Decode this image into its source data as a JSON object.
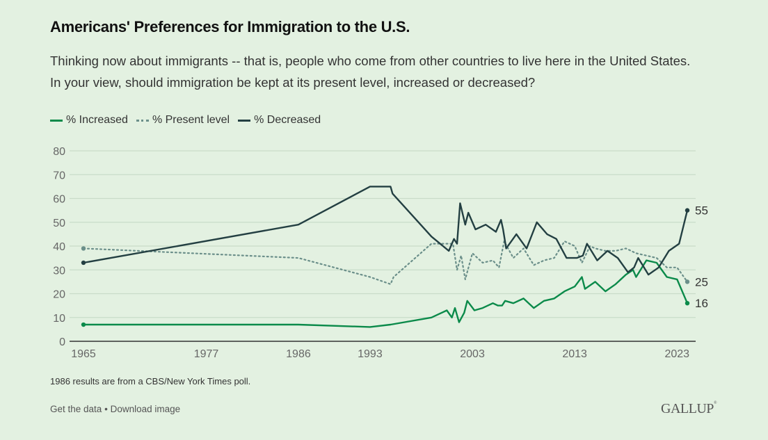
{
  "header": {
    "title": "Americans' Preferences for Immigration to the U.S.",
    "subtitle": "Thinking now about immigrants -- that is, people who come from other countries to live here in the United States. In your view, should immigration be kept at its present level, increased or decreased?"
  },
  "legend": {
    "increased": "% Increased",
    "present": "% Present level",
    "decreased": "% Decreased"
  },
  "colors": {
    "increased": "#0b8a4a",
    "present": "#6b8f8a",
    "decreased": "#233f42",
    "grid": "#c9dcc8",
    "axis": "#333333",
    "background": "#e3f1e1"
  },
  "footer": {
    "note": "1986 results are from a CBS/New York Times poll.",
    "get_data": "Get the data",
    "separator": "•",
    "download": "Download image",
    "brand": "GALLUP"
  },
  "chart_data": {
    "type": "line",
    "title": "Americans' Preferences for Immigration to the U.S.",
    "xlabel": "",
    "ylabel": "",
    "xlim": [
      1965,
      2024
    ],
    "ylim": [
      0,
      80
    ],
    "yticks": [
      0,
      10,
      20,
      30,
      40,
      50,
      60,
      70,
      80
    ],
    "xticks": [
      1965,
      1977,
      1986,
      1993,
      2003,
      2013,
      2023
    ],
    "grid": true,
    "legend_position": "top-left",
    "end_labels": {
      "decreased": "55",
      "present": "25",
      "increased": "16"
    },
    "series": [
      {
        "name": "% Increased",
        "key": "increased",
        "style": "solid",
        "points": [
          [
            1965,
            7
          ],
          [
            1986,
            7
          ],
          [
            1993,
            6
          ],
          [
            1995,
            7
          ],
          [
            1999,
            10
          ],
          [
            2000.5,
            13
          ],
          [
            2001,
            10
          ],
          [
            2001.3,
            14
          ],
          [
            2001.7,
            8
          ],
          [
            2002.2,
            12
          ],
          [
            2002.5,
            17
          ],
          [
            2003.2,
            13
          ],
          [
            2004,
            14
          ],
          [
            2005,
            16
          ],
          [
            2005.5,
            15
          ],
          [
            2005.9,
            15
          ],
          [
            2006.2,
            17
          ],
          [
            2007,
            16
          ],
          [
            2008,
            18
          ],
          [
            2009,
            14
          ],
          [
            2010,
            17
          ],
          [
            2011,
            18
          ],
          [
            2012,
            21
          ],
          [
            2013,
            23
          ],
          [
            2013.7,
            27
          ],
          [
            2014,
            22
          ],
          [
            2015,
            25
          ],
          [
            2016,
            21
          ],
          [
            2017,
            24
          ],
          [
            2018,
            28
          ],
          [
            2018.7,
            30
          ],
          [
            2019,
            27
          ],
          [
            2020,
            34
          ],
          [
            2021,
            33
          ],
          [
            2022,
            27
          ],
          [
            2023,
            26
          ],
          [
            2024,
            16
          ]
        ]
      },
      {
        "name": "% Present level",
        "key": "present",
        "style": "dotted",
        "points": [
          [
            1965,
            39
          ],
          [
            1986,
            35
          ],
          [
            1993,
            27
          ],
          [
            1995,
            24
          ],
          [
            1995.3,
            27
          ],
          [
            1999,
            41
          ],
          [
            2000.5,
            41
          ],
          [
            2001.1,
            41
          ],
          [
            2001.5,
            30
          ],
          [
            2001.9,
            36
          ],
          [
            2002.3,
            26
          ],
          [
            2003,
            37
          ],
          [
            2004,
            33
          ],
          [
            2005,
            34
          ],
          [
            2005.6,
            31
          ],
          [
            2006.1,
            42
          ],
          [
            2007,
            35
          ],
          [
            2008,
            39
          ],
          [
            2009,
            32
          ],
          [
            2010,
            34
          ],
          [
            2011,
            35
          ],
          [
            2012,
            42
          ],
          [
            2013,
            40
          ],
          [
            2013.7,
            33
          ],
          [
            2014.5,
            40
          ],
          [
            2015,
            39
          ],
          [
            2016,
            38
          ],
          [
            2017,
            38
          ],
          [
            2018,
            39
          ],
          [
            2019,
            37
          ],
          [
            2020,
            36
          ],
          [
            2021,
            35
          ],
          [
            2022,
            31
          ],
          [
            2023,
            31
          ],
          [
            2024,
            25
          ]
        ]
      },
      {
        "name": "% Decreased",
        "key": "decreased",
        "style": "solid",
        "points": [
          [
            1965,
            33
          ],
          [
            1986,
            49
          ],
          [
            1993,
            65
          ],
          [
            1995,
            65
          ],
          [
            1995.2,
            62
          ],
          [
            1999,
            44
          ],
          [
            2000.7,
            38
          ],
          [
            2001.2,
            43
          ],
          [
            2001.5,
            41
          ],
          [
            2001.8,
            58
          ],
          [
            2002.3,
            49
          ],
          [
            2002.6,
            54
          ],
          [
            2003.3,
            47
          ],
          [
            2004.3,
            49
          ],
          [
            2005.3,
            46
          ],
          [
            2005.8,
            51
          ],
          [
            2006,
            47
          ],
          [
            2006.3,
            39
          ],
          [
            2007.3,
            45
          ],
          [
            2008.3,
            39
          ],
          [
            2009.3,
            50
          ],
          [
            2010.3,
            45
          ],
          [
            2011.2,
            43
          ],
          [
            2012.2,
            35
          ],
          [
            2013.2,
            35
          ],
          [
            2013.8,
            36
          ],
          [
            2014.2,
            41
          ],
          [
            2015.2,
            34
          ],
          [
            2016.2,
            38
          ],
          [
            2017.2,
            35
          ],
          [
            2018.2,
            29
          ],
          [
            2018.8,
            31
          ],
          [
            2019.2,
            35
          ],
          [
            2020.2,
            28
          ],
          [
            2021.2,
            31
          ],
          [
            2022.2,
            38
          ],
          [
            2023.2,
            41
          ],
          [
            2024,
            55
          ]
        ]
      }
    ]
  }
}
